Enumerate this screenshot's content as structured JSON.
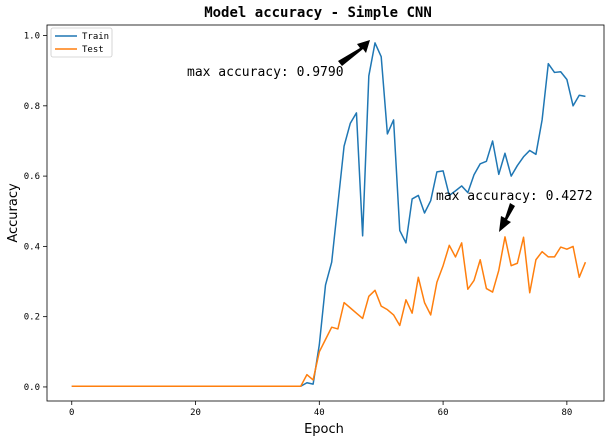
{
  "chart_data": {
    "type": "line",
    "title": "Model accuracy - Simple CNN",
    "xlabel": "Epoch",
    "ylabel": "Accuracy",
    "xlim": [
      -4,
      86
    ],
    "ylim": [
      -0.04,
      1.03
    ],
    "xticks": [
      0,
      20,
      40,
      60,
      80
    ],
    "yticks": [
      0.0,
      0.2,
      0.4,
      0.6,
      0.8,
      1.0
    ],
    "xtick_labels": [
      "0",
      "20",
      "40",
      "60",
      "80"
    ],
    "ytick_labels": [
      "0.0",
      "0.2",
      "0.4",
      "0.6",
      "0.8",
      "1.0"
    ],
    "grid": false,
    "legend_position": "top-left",
    "x": [
      0,
      1,
      2,
      3,
      4,
      5,
      6,
      7,
      8,
      9,
      10,
      11,
      12,
      13,
      14,
      15,
      16,
      17,
      18,
      19,
      20,
      21,
      22,
      23,
      24,
      25,
      26,
      27,
      28,
      29,
      30,
      31,
      32,
      33,
      34,
      35,
      36,
      37,
      38,
      39,
      40,
      41,
      42,
      43,
      44,
      45,
      46,
      47,
      48,
      49,
      50,
      51,
      52,
      53,
      54,
      55,
      56,
      57,
      58,
      59,
      60,
      61,
      62,
      63,
      64,
      65,
      66,
      67,
      68,
      69,
      70,
      71,
      72,
      73,
      74,
      75,
      76,
      77,
      78,
      79,
      80,
      81,
      82,
      83
    ],
    "series": [
      {
        "name": "Train",
        "color": "#1f77b4",
        "values": [
          0.002,
          0.002,
          0.002,
          0.002,
          0.002,
          0.002,
          0.002,
          0.002,
          0.002,
          0.002,
          0.002,
          0.002,
          0.002,
          0.002,
          0.002,
          0.002,
          0.002,
          0.002,
          0.002,
          0.002,
          0.002,
          0.002,
          0.002,
          0.002,
          0.002,
          0.002,
          0.002,
          0.002,
          0.002,
          0.002,
          0.002,
          0.002,
          0.002,
          0.002,
          0.002,
          0.002,
          0.002,
          0.002,
          0.012,
          0.008,
          0.12,
          0.29,
          0.355,
          0.52,
          0.685,
          0.75,
          0.78,
          0.43,
          0.885,
          0.979,
          0.94,
          0.72,
          0.76,
          0.445,
          0.41,
          0.535,
          0.545,
          0.495,
          0.53,
          0.612,
          0.615,
          0.545,
          0.558,
          0.572,
          0.553,
          0.604,
          0.635,
          0.642,
          0.7,
          0.605,
          0.665,
          0.6,
          0.63,
          0.655,
          0.673,
          0.662,
          0.76,
          0.92,
          0.895,
          0.897,
          0.875,
          0.8,
          0.83,
          0.827
        ]
      },
      {
        "name": "Test",
        "color": "#ff7f0e",
        "values": [
          0.002,
          0.002,
          0.002,
          0.002,
          0.002,
          0.002,
          0.002,
          0.002,
          0.002,
          0.002,
          0.002,
          0.002,
          0.002,
          0.002,
          0.002,
          0.002,
          0.002,
          0.002,
          0.002,
          0.002,
          0.002,
          0.002,
          0.002,
          0.002,
          0.002,
          0.002,
          0.002,
          0.002,
          0.002,
          0.002,
          0.002,
          0.002,
          0.002,
          0.002,
          0.002,
          0.002,
          0.002,
          0.002,
          0.035,
          0.02,
          0.1,
          0.135,
          0.17,
          0.165,
          0.24,
          0.225,
          0.21,
          0.195,
          0.258,
          0.275,
          0.23,
          0.22,
          0.205,
          0.175,
          0.248,
          0.21,
          0.312,
          0.24,
          0.205,
          0.298,
          0.345,
          0.403,
          0.37,
          0.41,
          0.278,
          0.303,
          0.362,
          0.28,
          0.27,
          0.332,
          0.4272,
          0.345,
          0.352,
          0.426,
          0.268,
          0.362,
          0.385,
          0.37,
          0.37,
          0.398,
          0.392,
          0.4,
          0.312,
          0.355
        ]
      }
    ],
    "annotations": [
      {
        "text": "max accuracy: 0.9790",
        "x": 49,
        "y": 0.979
      },
      {
        "text": "max accuracy: 0.4272",
        "x": 70,
        "y": 0.4272
      }
    ]
  }
}
